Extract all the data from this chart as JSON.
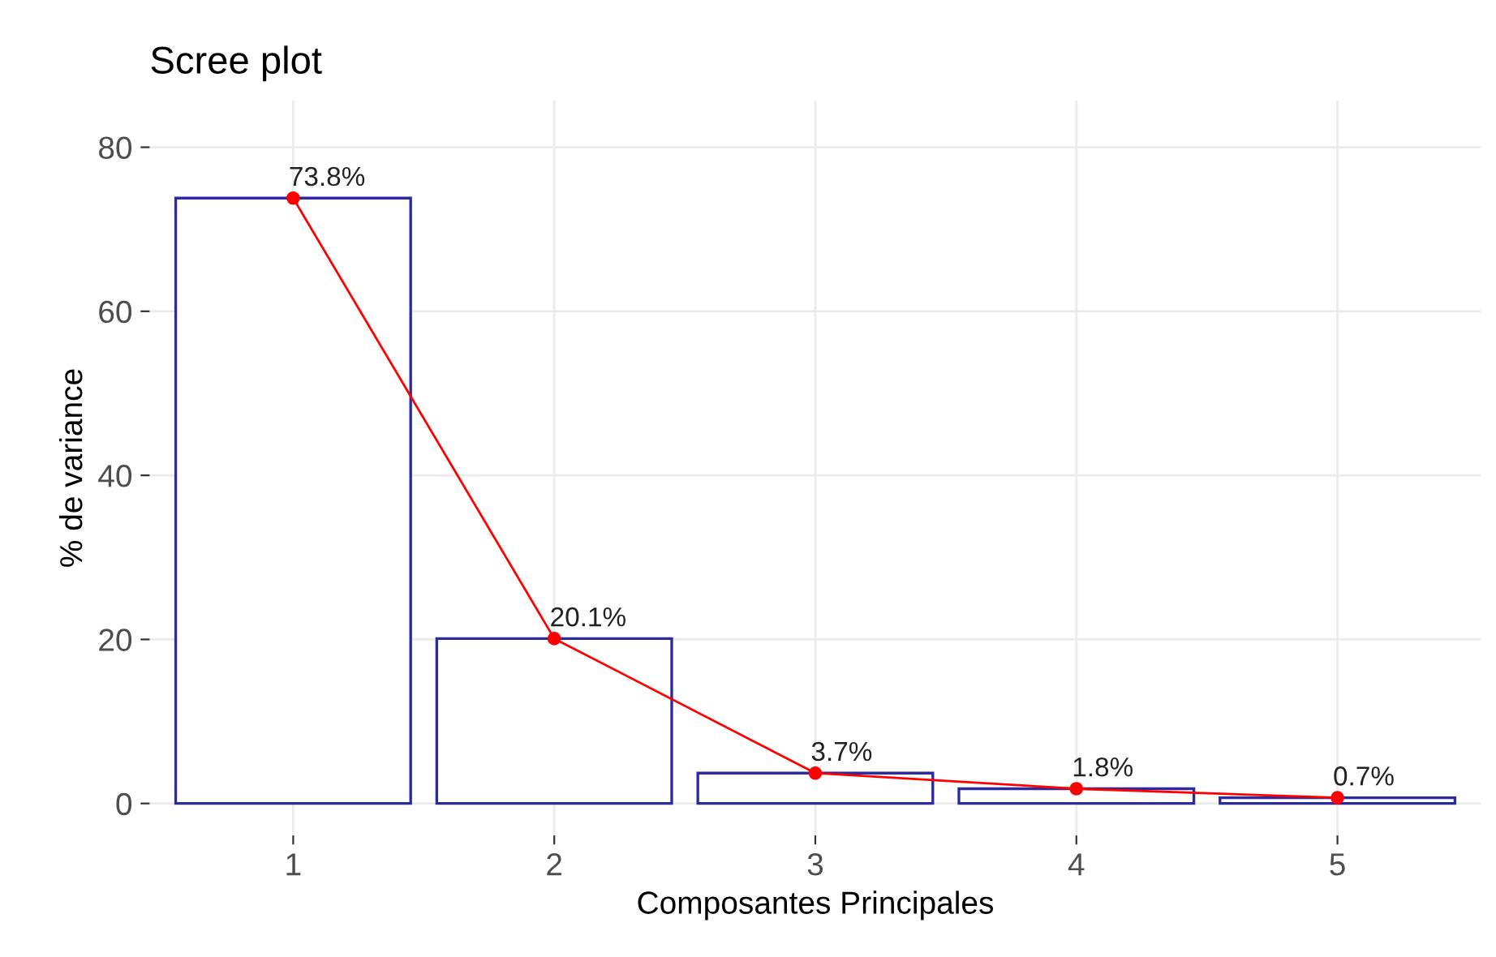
{
  "chart_data": {
    "type": "bar",
    "title": "Scree plot",
    "xlabel": "Composantes Principales",
    "ylabel": "% de variance",
    "categories": [
      "1",
      "2",
      "3",
      "4",
      "5"
    ],
    "series": [
      {
        "color": "#2b2b9e",
        "values": [
          73.8,
          20.1,
          3.7,
          1.8,
          0.7
        ],
        "value_labels": [
          "73.8%",
          "20.1%",
          "3.7%",
          "1.8%",
          "0.7%"
        ]
      },
      {
        "type": "line",
        "color": "#ff0000",
        "values": [
          73.8,
          20.1,
          3.7,
          1.8,
          0.7
        ],
        "marker": "circle"
      }
    ],
    "ylim": [
      -3.9,
      85.7
    ],
    "yticks": [
      0,
      20,
      40,
      60,
      80
    ],
    "grid": true
  }
}
